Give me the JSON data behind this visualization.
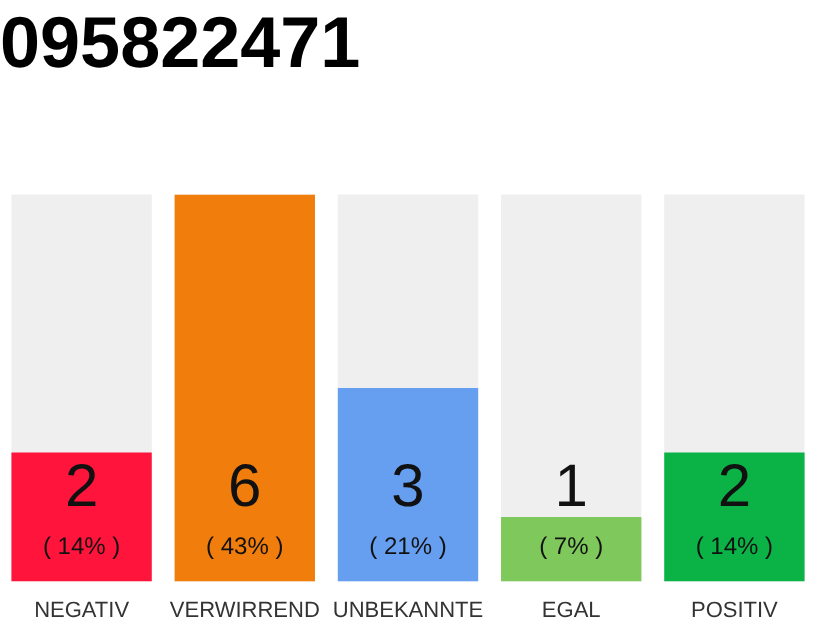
{
  "chart_data": {
    "type": "bar",
    "title": "095822471",
    "categories": [
      "NEGATIV",
      "VERWIRREND",
      "UNBEKANNTE",
      "EGAL",
      "POSITIV"
    ],
    "values": [
      2,
      6,
      3,
      1,
      2
    ],
    "colors": [
      "#ff153c",
      "#f07d0c",
      "#669ef0",
      "#7ec85c",
      "#0bb346"
    ],
    "value_labels": [
      "2\n( 14% )",
      "6\n( 43% )",
      "3\n( 21% )",
      "1\n( 7% )",
      "2\n( 14% )"
    ],
    "tick_labels": "x",
    "grid": false,
    "legend": false
  }
}
